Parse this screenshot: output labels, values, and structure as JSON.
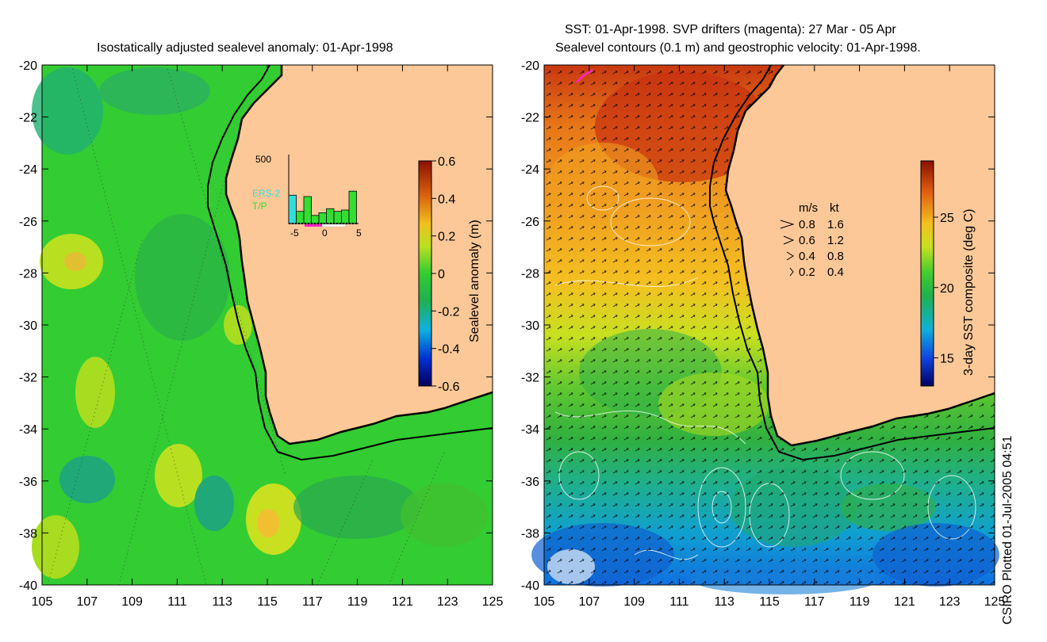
{
  "left_map": {
    "title": "Isostatically adjusted sealevel anomaly: 01-Apr-1998",
    "y_ticks": [
      "-20",
      "-22",
      "-24",
      "-26",
      "-28",
      "-30",
      "-32",
      "-34",
      "-36",
      "-38",
      "-40"
    ],
    "x_ticks": [
      "105",
      "107",
      "109",
      "111",
      "113",
      "115",
      "117",
      "119",
      "121",
      "123",
      "125"
    ],
    "colorbar": {
      "label": "Sealevel anomaly (m)",
      "ticks": [
        "0.6",
        "0.4",
        "0.2",
        "0",
        "-0.2",
        "-0.4",
        "-0.6"
      ],
      "range": [
        -0.6,
        0.6
      ]
    },
    "histogram": {
      "y_max_label": "500",
      "x_ticks": [
        "-5",
        "0",
        "5"
      ],
      "legend": [
        "ERS-2",
        "T/P"
      ],
      "ers2_count": 210,
      "tp_counts": [
        90,
        200,
        60,
        80,
        110,
        90,
        100,
        240
      ],
      "tp_color": "#33dd33",
      "ers2_color": "#33dddd"
    }
  },
  "right_map": {
    "title_line1": "SST: 01-Apr-1998. SVP drifters (magenta): 27 Mar - 05 Apr",
    "title_line2": "Sealevel contours (0.1 m) and geostrophic velocity: 01-Apr-1998.",
    "y_ticks": [
      "-20",
      "-22",
      "-24",
      "-26",
      "-28",
      "-30",
      "-32",
      "-34",
      "-36",
      "-38",
      "-40"
    ],
    "x_ticks": [
      "105",
      "107",
      "109",
      "111",
      "113",
      "115",
      "117",
      "119",
      "121",
      "123",
      "125"
    ],
    "colorbar": {
      "label": "3-day SST composite (deg C)",
      "ticks": [
        "25",
        "20",
        "15"
      ],
      "range": [
        13,
        29
      ]
    },
    "velocity_legend": {
      "header_ms": "m/s",
      "header_kt": "kt",
      "rows": [
        {
          "ms": "0.8",
          "kt": "1.6"
        },
        {
          "ms": "0.6",
          "kt": "1.2"
        },
        {
          "ms": "0.4",
          "kt": "0.8"
        },
        {
          "ms": "0.2",
          "kt": "0.4"
        }
      ]
    }
  },
  "credit": "CSIRO Plotted 01-Jul-2005 04:51",
  "colors": {
    "land": "#fcc898",
    "coast": "#000000",
    "drifter": "#ff22cc"
  }
}
